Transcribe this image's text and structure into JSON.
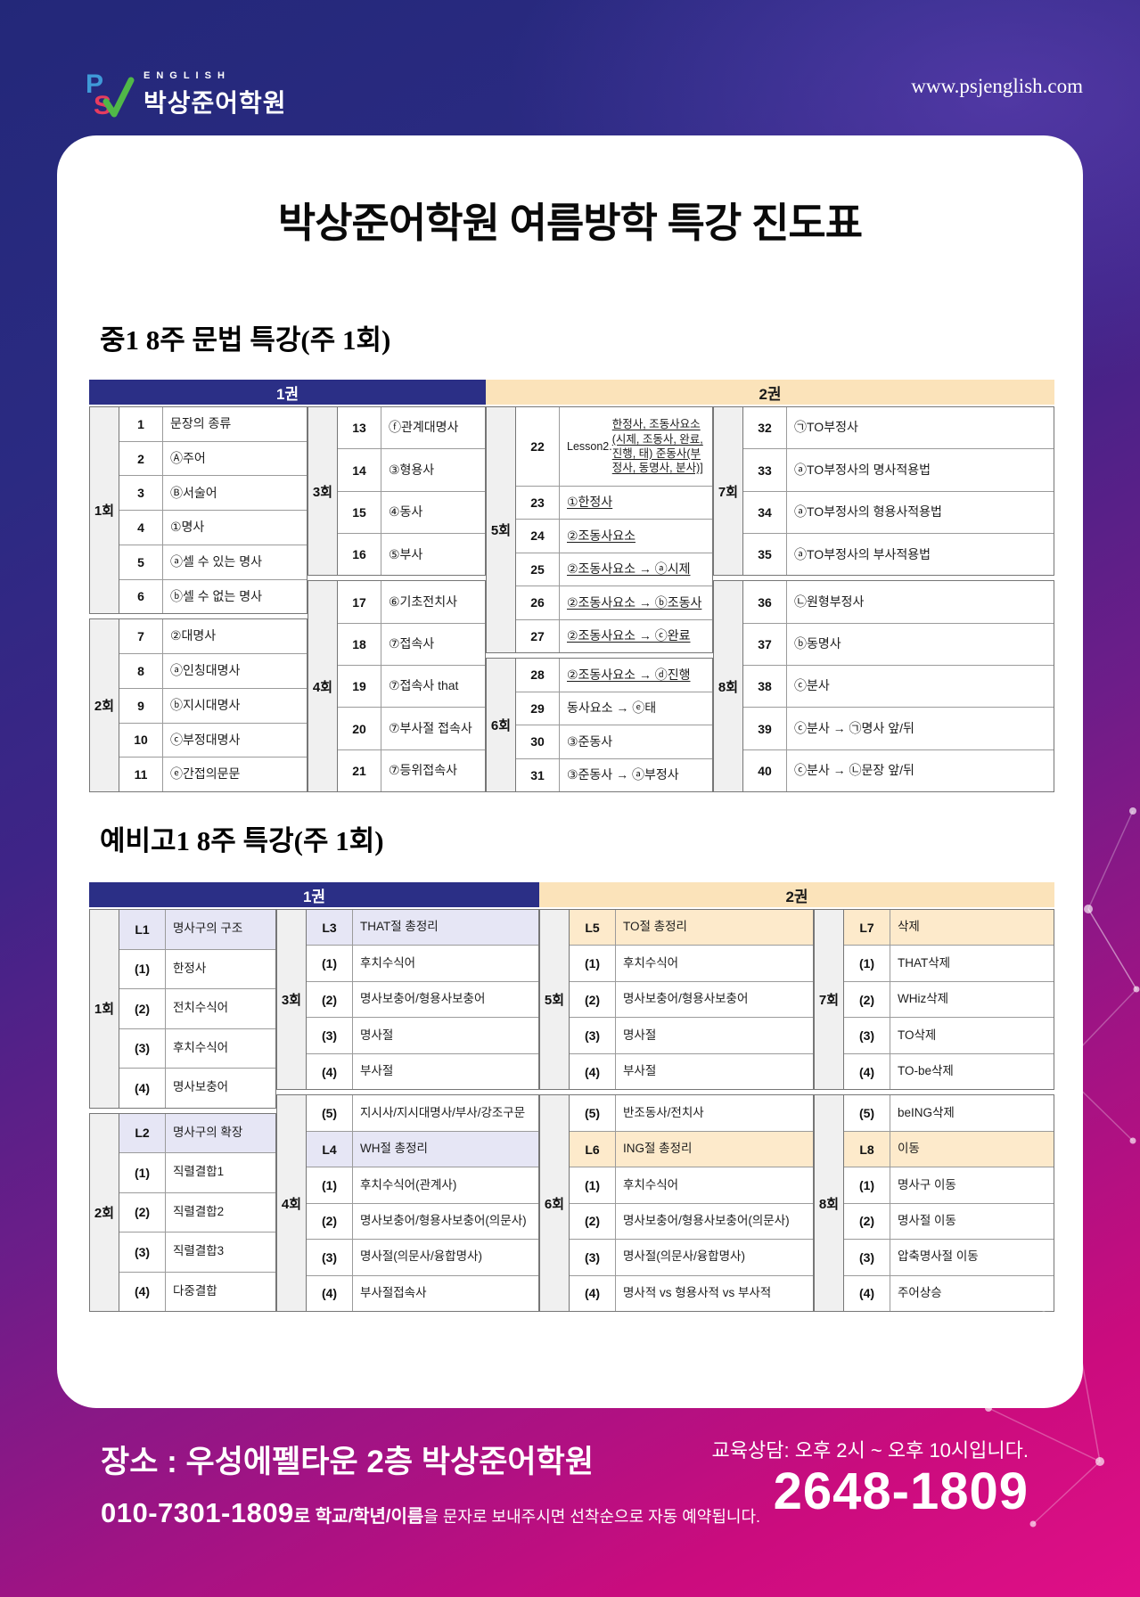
{
  "brand": {
    "logo_letters": {
      "p": "P",
      "s": "S",
      "check": "✓"
    },
    "logo_english": "ENGLISH",
    "logo_name": "박상준어학원",
    "website": "www.psjenglish.com"
  },
  "poster": {
    "title": "박상준어학원 여름방학 특강 진도표"
  },
  "colors": {
    "vol1_navy": "#2b2f86",
    "vol2_tan": "#fbe3ba",
    "highlight_lavender": "#e6e6f5",
    "highlight_peach": "#fdeacb",
    "background_magenta": "#d50c80",
    "background_navy": "#232879"
  },
  "tables": [
    {
      "id": "t1",
      "title": "중1 8주 문법 특강(주 1회)",
      "volumes": [
        {
          "label": "1권"
        },
        {
          "label": "2권"
        }
      ],
      "groups": [
        [
          {
            "session": "1회",
            "rows": [
              {
                "n": "1",
                "t": "문장의 종류"
              },
              {
                "n": "2",
                "t": "Ⓐ주어"
              },
              {
                "n": "3",
                "t": "Ⓑ서술어"
              },
              {
                "n": "4",
                "t": "①명사"
              },
              {
                "n": "5",
                "t": "ⓐ셀 수 있는 명사"
              },
              {
                "n": "6",
                "t": "ⓑ셀 수 없는 명사"
              }
            ]
          },
          {
            "session": "2회",
            "rows": [
              {
                "n": "7",
                "t": "②대명사"
              },
              {
                "n": "8",
                "t": "ⓐ인칭대명사"
              },
              {
                "n": "9",
                "t": "ⓑ지시대명사"
              },
              {
                "n": "10",
                "t": "ⓒ부정대명사"
              },
              {
                "n": "11",
                "t": "ⓔ간접의문문"
              }
            ]
          }
        ],
        [
          {
            "session": "3회",
            "rows": [
              {
                "n": "13",
                "t": "ⓕ관계대명사"
              },
              {
                "n": "14",
                "t": "③형용사"
              },
              {
                "n": "15",
                "t": "④동사"
              },
              {
                "n": "16",
                "t": "⑤부사"
              }
            ]
          },
          {
            "session": "4회",
            "rows": [
              {
                "n": "17",
                "t": "⑥기초전치사"
              },
              {
                "n": "18",
                "t": "⑦접속사"
              },
              {
                "n": "19",
                "t": "⑦접속사 that"
              },
              {
                "n": "20",
                "t": "⑦부사절 접속사"
              },
              {
                "n": "21",
                "t": "⑦등위접속사"
              }
            ]
          }
        ],
        [
          {
            "session": "5회",
            "rows": [
              {
                "n": "22",
                "prefix": "Lesson2. ",
                "t": "한정사, 조동사요소(시제, 조동사, 완료, 진행, 태) 준동사(부정사, 동명사, 분사)]",
                "ul": true,
                "tall": true
              },
              {
                "n": "23",
                "t": "①한정사",
                "ul": true
              },
              {
                "n": "24",
                "t": "②조동사요소",
                "ul": true
              },
              {
                "n": "25",
                "t": "②조동사요소 → ⓐ시제",
                "ul": true
              },
              {
                "n": "26",
                "t": "②조동사요소 → ⓑ조동사",
                "ul": true
              },
              {
                "n": "27",
                "t": "②조동사요소 → ⓒ완료",
                "ul": true
              }
            ]
          },
          {
            "session": "6회",
            "rows": [
              {
                "n": "28",
                "t": "②조동사요소 → ⓓ진행",
                "ul": true
              },
              {
                "n": "29",
                "t": "동사요소 → ⓔ태"
              },
              {
                "n": "30",
                "t": "③준동사"
              },
              {
                "n": "31",
                "t": "③준동사 → ⓐ부정사"
              }
            ]
          }
        ],
        [
          {
            "session": "7회",
            "rows": [
              {
                "n": "32",
                "t": "㉠TO부정사"
              },
              {
                "n": "33",
                "t": "ⓐTO부정사의 명사적용법"
              },
              {
                "n": "34",
                "t": "ⓐTO부정사의 형용사적용법"
              },
              {
                "n": "35",
                "t": "ⓐTO부정사의 부사적용법"
              }
            ]
          },
          {
            "session": "8회",
            "rows": [
              {
                "n": "36",
                "t": "㉡원형부정사"
              },
              {
                "n": "37",
                "t": "ⓑ동명사"
              },
              {
                "n": "38",
                "t": "ⓒ분사"
              },
              {
                "n": "39",
                "t": "ⓒ분사 → ㉠명사 앞/뒤"
              },
              {
                "n": "40",
                "t": "ⓒ분사 → ㉡문장 앞/뒤"
              }
            ]
          }
        ]
      ]
    },
    {
      "id": "t2",
      "title": "예비고1 8주 특강(주 1회)",
      "volumes": [
        {
          "label": "1권"
        },
        {
          "label": "2권"
        }
      ],
      "groups": [
        [
          {
            "session": "1회",
            "rows": [
              {
                "n": "L1",
                "t": "명사구의 구조",
                "hl": true
              },
              {
                "n": "(1)",
                "t": "한정사"
              },
              {
                "n": "(2)",
                "t": "전치수식어"
              },
              {
                "n": "(3)",
                "t": "후치수식어"
              },
              {
                "n": "(4)",
                "t": "명사보충어"
              }
            ]
          },
          {
            "session": "2회",
            "rows": [
              {
                "n": "L2",
                "t": "명사구의 확장",
                "hl": true
              },
              {
                "n": "(1)",
                "t": "직렬결합1"
              },
              {
                "n": "(2)",
                "t": "직렬결합2"
              },
              {
                "n": "(3)",
                "t": "직렬결합3"
              },
              {
                "n": "(4)",
                "t": "다중결합"
              }
            ]
          }
        ],
        [
          {
            "session": "3회",
            "rows": [
              {
                "n": "L3",
                "t": "THAT절 총정리",
                "hl": true
              },
              {
                "n": "(1)",
                "t": "후치수식어"
              },
              {
                "n": "(2)",
                "t": "명사보충어/형용사보충어"
              },
              {
                "n": "(3)",
                "t": "명사절"
              },
              {
                "n": "(4)",
                "t": "부사절"
              }
            ]
          },
          {
            "session": "4회",
            "rows": [
              {
                "n": "(5)",
                "t": "지시사/지시대명사/부사/강조구문"
              },
              {
                "n": "L4",
                "t": "WH절 총정리",
                "hl": true
              },
              {
                "n": "(1)",
                "t": "후치수식어(관계사)"
              },
              {
                "n": "(2)",
                "t": "명사보충어/형용사보충어(의문사)"
              },
              {
                "n": "(3)",
                "t": "명사절(의문사/융합명사)"
              },
              {
                "n": "(4)",
                "t": "부사절접속사"
              }
            ]
          }
        ],
        [
          {
            "session": "5회",
            "rows": [
              {
                "n": "L5",
                "t": "TO절 총정리",
                "hl": true
              },
              {
                "n": "(1)",
                "t": "후치수식어"
              },
              {
                "n": "(2)",
                "t": "명사보충어/형용사보충어"
              },
              {
                "n": "(3)",
                "t": "명사절"
              },
              {
                "n": "(4)",
                "t": "부사절"
              }
            ]
          },
          {
            "session": "6회",
            "rows": [
              {
                "n": "(5)",
                "t": "반조동사/전치사"
              },
              {
                "n": "L6",
                "t": "ING절 총정리",
                "hl": true
              },
              {
                "n": "(1)",
                "t": "후치수식어"
              },
              {
                "n": "(2)",
                "t": "명사보충어/형용사보충어(의문사)"
              },
              {
                "n": "(3)",
                "t": "명사절(의문사/융합명사)"
              },
              {
                "n": "(4)",
                "t": "명사적 vs 형용사적 vs 부사적"
              }
            ]
          }
        ],
        [
          {
            "session": "7회",
            "rows": [
              {
                "n": "L7",
                "t": "삭제",
                "hl": true
              },
              {
                "n": "(1)",
                "t": "THAT삭제"
              },
              {
                "n": "(2)",
                "t": "WHiz삭제"
              },
              {
                "n": "(3)",
                "t": "TO삭제"
              },
              {
                "n": "(4)",
                "t": "TO-be삭제"
              }
            ]
          },
          {
            "session": "8회",
            "rows": [
              {
                "n": "(5)",
                "t": "beING삭제"
              },
              {
                "n": "L8",
                "t": "이동",
                "hl": true
              },
              {
                "n": "(1)",
                "t": "명사구 이동"
              },
              {
                "n": "(2)",
                "t": "명사절 이동"
              },
              {
                "n": "(3)",
                "t": "압축명사절 이동"
              },
              {
                "n": "(4)",
                "t": "주어상승"
              }
            ]
          }
        ]
      ]
    }
  ],
  "footer": {
    "location": "장소 : 우성에펠타운 2층 박상준어학원",
    "sms_phone": "010-7301-1809",
    "sms_text_1": "로 ",
    "sms_bold": "학교/학년/이름",
    "sms_text_2": "을 문자로 보내주시면 선착순으로 자동 예약됩니다.",
    "consult_hours": "교육상담: 오후 2시 ~ 오후 10시입니다.",
    "consult_phone": "2648-1809"
  }
}
